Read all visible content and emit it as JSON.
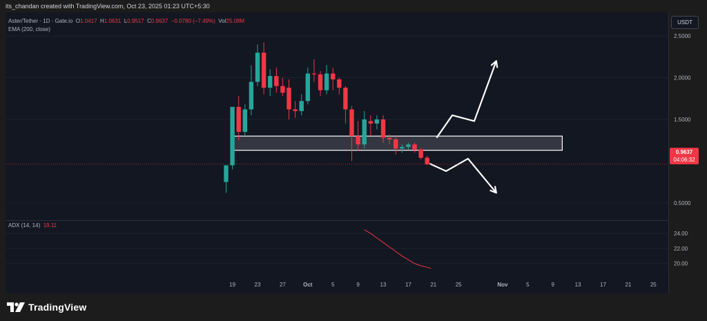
{
  "header": {
    "attribution": "its_chandan created with TradingView.com, Oct 23, 2025 01:23 UTC+5:30",
    "symbol": "Aster/Tether · 1D · Gate.io",
    "ohlc": {
      "o_label": "O",
      "o": "1.0417",
      "h_label": "H",
      "h": "1.0631",
      "l_label": "L",
      "l": "0.9517",
      "c_label": "C",
      "c": "0.9637",
      "change": "−0.0780 (−7.49%)",
      "vol_label": "Vol",
      "vol": "25.08M"
    },
    "indicator_ema": "EMA (200, close)",
    "currency_button": "USDT"
  },
  "price_badge": {
    "price": "0.9637",
    "countdown": "04:06:32",
    "color": "#f23645"
  },
  "colors": {
    "up": "#26a69a",
    "down": "#f23645",
    "background": "#131722",
    "grid": "#1e222d",
    "adx_line": "#f23645",
    "drawing": "#ffffff"
  },
  "adx_panel": {
    "label": "ADX (14, 14)",
    "value": "19.11"
  },
  "footer": {
    "logo_text": "TradingView",
    "logo_icon": "tradingview-logo-icon"
  },
  "chart_data": {
    "type": "candlestick",
    "symbol": "Aster/Tether",
    "timeframe": "1D",
    "exchange": "Gate.io",
    "y_axis": {
      "min": 0.3,
      "max": 2.65,
      "ticks": [
        2.5,
        2.0,
        1.5,
        0.5
      ],
      "tick_labels": [
        "2.5000",
        "2.0000",
        "1.5000",
        "0.5000"
      ]
    },
    "x_axis": {
      "labels": [
        {
          "day": 1,
          "label": "19"
        },
        {
          "day": 5,
          "label": "23"
        },
        {
          "day": 9,
          "label": "27"
        },
        {
          "day": 13,
          "label": "Oct"
        },
        {
          "day": 17,
          "label": "5"
        },
        {
          "day": 21,
          "label": "9"
        },
        {
          "day": 25,
          "label": "13"
        },
        {
          "day": 29,
          "label": "17"
        },
        {
          "day": 33,
          "label": "21"
        },
        {
          "day": 37,
          "label": "25"
        },
        {
          "day": 44,
          "label": "Nov"
        },
        {
          "day": 48,
          "label": "5"
        },
        {
          "day": 52,
          "label": "9"
        },
        {
          "day": 56,
          "label": "13"
        },
        {
          "day": 60,
          "label": "17"
        },
        {
          "day": 64,
          "label": "21"
        },
        {
          "day": 68,
          "label": "25"
        }
      ]
    },
    "candles": [
      {
        "d": 0,
        "o": 0.75,
        "h": 0.95,
        "l": 0.62,
        "c": 0.95
      },
      {
        "d": 1,
        "o": 0.95,
        "h": 1.65,
        "l": 0.9,
        "c": 1.65
      },
      {
        "d": 2,
        "o": 1.65,
        "h": 1.78,
        "l": 1.25,
        "c": 1.35
      },
      {
        "d": 3,
        "o": 1.35,
        "h": 1.68,
        "l": 1.3,
        "c": 1.62
      },
      {
        "d": 4,
        "o": 1.62,
        "h": 2.15,
        "l": 1.55,
        "c": 1.95
      },
      {
        "d": 5,
        "o": 1.95,
        "h": 2.4,
        "l": 1.9,
        "c": 2.3
      },
      {
        "d": 6,
        "o": 2.3,
        "h": 2.42,
        "l": 1.8,
        "c": 1.88
      },
      {
        "d": 7,
        "o": 1.88,
        "h": 2.1,
        "l": 1.78,
        "c": 2.02
      },
      {
        "d": 8,
        "o": 2.02,
        "h": 2.12,
        "l": 1.82,
        "c": 1.9
      },
      {
        "d": 9,
        "o": 1.9,
        "h": 2.0,
        "l": 1.78,
        "c": 1.82
      },
      {
        "d": 10,
        "o": 1.88,
        "h": 1.98,
        "l": 1.5,
        "c": 1.62
      },
      {
        "d": 11,
        "o": 1.62,
        "h": 1.72,
        "l": 1.52,
        "c": 1.6
      },
      {
        "d": 12,
        "o": 1.6,
        "h": 1.8,
        "l": 1.55,
        "c": 1.72
      },
      {
        "d": 13,
        "o": 1.72,
        "h": 2.12,
        "l": 1.68,
        "c": 2.05
      },
      {
        "d": 14,
        "o": 2.05,
        "h": 2.22,
        "l": 1.95,
        "c": 2.04
      },
      {
        "d": 15,
        "o": 2.04,
        "h": 2.08,
        "l": 1.78,
        "c": 1.85
      },
      {
        "d": 16,
        "o": 1.85,
        "h": 2.15,
        "l": 1.8,
        "c": 2.05
      },
      {
        "d": 17,
        "o": 2.05,
        "h": 2.12,
        "l": 1.85,
        "c": 1.98
      },
      {
        "d": 18,
        "o": 1.98,
        "h": 2.0,
        "l": 1.8,
        "c": 1.88
      },
      {
        "d": 19,
        "o": 1.88,
        "h": 1.9,
        "l": 1.45,
        "c": 1.62
      },
      {
        "d": 20,
        "o": 1.62,
        "h": 1.66,
        "l": 1.0,
        "c": 1.3
      },
      {
        "d": 21,
        "o": 1.3,
        "h": 1.48,
        "l": 1.12,
        "c": 1.2
      },
      {
        "d": 22,
        "o": 1.2,
        "h": 1.6,
        "l": 1.15,
        "c": 1.5
      },
      {
        "d": 23,
        "o": 1.48,
        "h": 1.55,
        "l": 1.3,
        "c": 1.45
      },
      {
        "d": 24,
        "o": 1.45,
        "h": 1.55,
        "l": 1.38,
        "c": 1.5
      },
      {
        "d": 25,
        "o": 1.5,
        "h": 1.55,
        "l": 1.22,
        "c": 1.28
      },
      {
        "d": 26,
        "o": 1.28,
        "h": 1.32,
        "l": 1.2,
        "c": 1.26
      },
      {
        "d": 27,
        "o": 1.26,
        "h": 1.3,
        "l": 1.08,
        "c": 1.15
      },
      {
        "d": 28,
        "o": 1.15,
        "h": 1.2,
        "l": 1.1,
        "c": 1.17
      },
      {
        "d": 29,
        "o": 1.17,
        "h": 1.22,
        "l": 1.14,
        "c": 1.2
      },
      {
        "d": 30,
        "o": 1.2,
        "h": 1.22,
        "l": 1.1,
        "c": 1.14
      },
      {
        "d": 31,
        "o": 1.14,
        "h": 1.16,
        "l": 1.02,
        "c": 1.04
      },
      {
        "d": 32,
        "o": 1.0417,
        "h": 1.0631,
        "l": 0.9517,
        "c": 0.9637
      }
    ],
    "zone": {
      "from_day": 1,
      "to_day": 53.5,
      "low": 1.13,
      "high": 1.3
    },
    "current_price": 0.9637,
    "drawings": [
      {
        "name": "bullish-path",
        "points": [
          [
            33.5,
            1.28
          ],
          [
            36,
            1.55
          ],
          [
            39.5,
            1.48
          ],
          [
            43,
            2.2
          ]
        ],
        "arrow_end": true
      },
      {
        "name": "bearish-path",
        "points": [
          [
            32.4,
            0.97
          ],
          [
            35,
            0.88
          ],
          [
            38.5,
            1.03
          ],
          [
            43,
            0.62
          ]
        ],
        "arrow_end": true
      }
    ],
    "adx": {
      "label": "ADX (14, 14)",
      "value": 19.11,
      "y_ticks": [
        24,
        22,
        20
      ],
      "tick_labels": [
        "24.00",
        "22.00",
        "20.00"
      ],
      "y_min": 18.6,
      "y_max": 25.2,
      "points": [
        [
          22,
          24.5
        ],
        [
          23,
          24.0
        ],
        [
          24,
          23.4
        ],
        [
          25,
          22.8
        ],
        [
          26,
          22.2
        ],
        [
          27,
          21.6
        ],
        [
          28,
          21.0
        ],
        [
          29,
          20.5
        ],
        [
          30,
          20.0
        ],
        [
          31,
          19.7
        ],
        [
          32,
          19.5
        ],
        [
          32.6,
          19.35
        ]
      ]
    }
  }
}
